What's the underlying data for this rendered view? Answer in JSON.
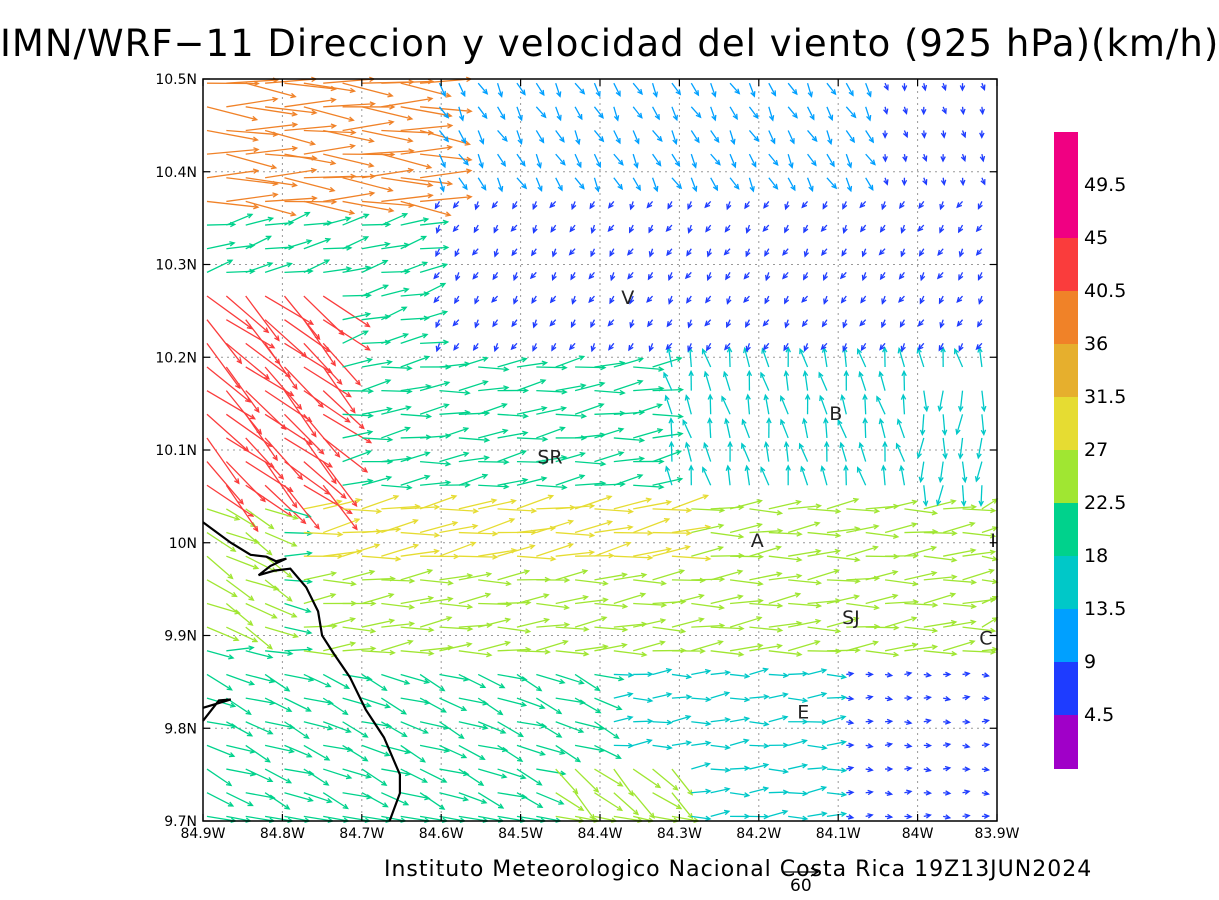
{
  "title": "IMN/WRF−11 Direccion y velocidad del viento (925 hPa)(km/h)",
  "footer": "Instituto Meteorologico Nacional Costa Rica  19Z13JUN2024",
  "reference_vector": {
    "label": "60",
    "speed": 60
  },
  "axes": {
    "lon_labels": [
      "84.9W",
      "84.8W",
      "84.7W",
      "84.6W",
      "84.5W",
      "84.4W",
      "84.3W",
      "84.2W",
      "84.1W",
      "84W",
      "83.9W"
    ],
    "lat_labels": [
      "10.5N",
      "10.4N",
      "10.3N",
      "10.2N",
      "10.1N",
      "10N",
      "9.9N",
      "9.8N",
      "9.7N"
    ],
    "lon_range": [
      -84.9,
      -83.9
    ],
    "lat_range": [
      9.7,
      10.5
    ],
    "grid": true
  },
  "colorbar": {
    "labels": [
      "4.5",
      "9",
      "13.5",
      "18",
      "22.5",
      "27",
      "31.5",
      "36",
      "40.5",
      "45",
      "49.5"
    ],
    "colors": [
      "#a000c8",
      "#1e3cff",
      "#00a0ff",
      "#00c8c8",
      "#00d28c",
      "#a0e632",
      "#e6dc32",
      "#e6af2d",
      "#f08228",
      "#fa3c3c",
      "#f00082"
    ]
  },
  "places": [
    {
      "label": "V",
      "lon": -84.365,
      "lat": 10.265
    },
    {
      "label": "B",
      "lon": -84.103,
      "lat": 10.14
    },
    {
      "label": "SR",
      "lon": -84.463,
      "lat": 10.093
    },
    {
      "label": "A",
      "lon": -84.202,
      "lat": 10.003
    },
    {
      "label": "I",
      "lon": -83.905,
      "lat": 10.003
    },
    {
      "label": "SJ",
      "lon": -84.084,
      "lat": 9.92
    },
    {
      "label": "C",
      "lon": -83.914,
      "lat": 9.898
    },
    {
      "label": "E",
      "lon": -84.144,
      "lat": 9.818
    }
  ],
  "coastline": [
    [
      -84.9,
      10.022
    ],
    [
      -84.865,
      10.0
    ],
    [
      -84.84,
      9.987
    ],
    [
      -84.82,
      9.985
    ],
    [
      -84.808,
      9.98
    ],
    [
      -84.795,
      9.983
    ],
    [
      -84.815,
      9.975
    ],
    [
      -84.83,
      9.965
    ],
    [
      -84.81,
      9.97
    ],
    [
      -84.79,
      9.972
    ],
    [
      -84.77,
      9.952
    ],
    [
      -84.755,
      9.926
    ],
    [
      -84.75,
      9.9
    ],
    [
      -84.735,
      9.88
    ],
    [
      -84.715,
      9.855
    ],
    [
      -84.695,
      9.82
    ],
    [
      -84.672,
      9.79
    ],
    [
      -84.652,
      9.75
    ],
    [
      -84.652,
      9.73
    ],
    [
      -84.665,
      9.7
    ]
  ],
  "coastline_islet": [
    [
      -84.9,
      9.808
    ],
    [
      -84.88,
      9.83
    ],
    [
      -84.865,
      9.831
    ],
    [
      -84.9,
      9.822
    ]
  ],
  "wind_regions": [
    {
      "region": "NW open ocean (north of 10.35N, west of 84.65W)",
      "direction": "E",
      "speed_kmh": 40
    },
    {
      "region": "Gulf of Nicoya entrance",
      "direction": "SE",
      "speed_kmh": 45
    },
    {
      "region": "Northern plains (north of 10.2N, east of 84.6W)",
      "direction": "SW to S",
      "speed_kmh": 6
    },
    {
      "region": "Central valley belt (9.9N–10.05N)",
      "direction": "E",
      "speed_kmh": 22
    },
    {
      "region": "Southern Pacific slope",
      "direction": "E to SE",
      "speed_kmh": 20
    }
  ]
}
